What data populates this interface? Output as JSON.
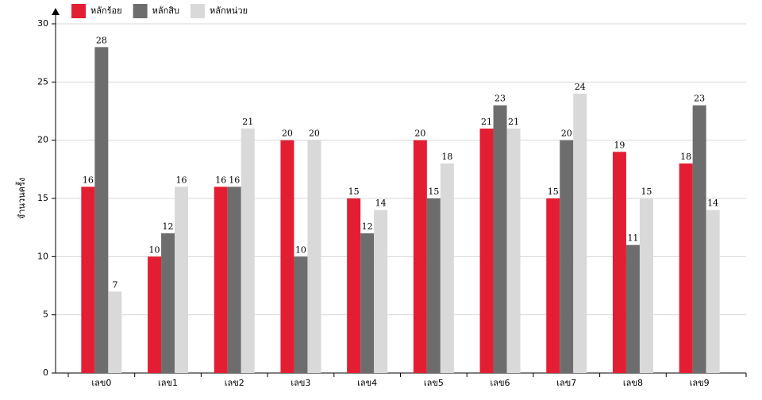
{
  "chart_data": {
    "type": "bar",
    "y_label": "จำนวนครั้ง",
    "categories": [
      "เลข0",
      "เลข1",
      "เลข2",
      "เลข3",
      "เลข4",
      "เลข5",
      "เลข6",
      "เลข7",
      "เลข8",
      "เลข9"
    ],
    "series": [
      {
        "name": "หลักร้อย",
        "color": "#e41e32",
        "values": [
          16,
          10,
          16,
          20,
          15,
          20,
          21,
          15,
          19,
          18
        ]
      },
      {
        "name": "หลักสิบ",
        "color": "#6d6d6d",
        "values": [
          28,
          12,
          16,
          10,
          12,
          15,
          23,
          20,
          11,
          23
        ]
      },
      {
        "name": "หลักหน่วย",
        "color": "#d9d9d9",
        "values": [
          7,
          16,
          21,
          20,
          14,
          18,
          21,
          24,
          15,
          14
        ]
      }
    ],
    "ylim": [
      0,
      30
    ],
    "yticks": [
      0,
      5,
      10,
      15,
      20,
      25,
      30
    ],
    "grid": true,
    "legend": "top-left"
  }
}
